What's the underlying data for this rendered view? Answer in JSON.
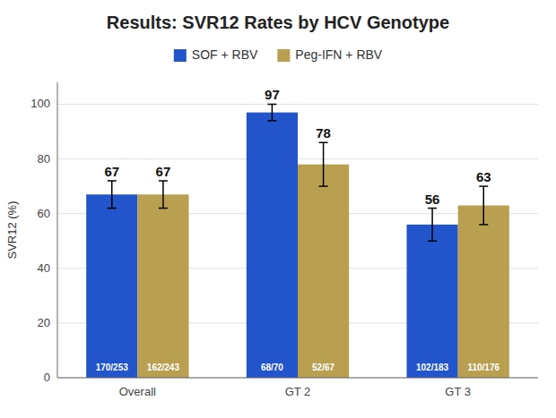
{
  "chart_data": {
    "type": "bar",
    "title": "Results: SVR12 Rates by HCV Genotype",
    "ylabel": "SVR12 (%)",
    "categories": [
      "Overall",
      "GT 2",
      "GT 3"
    ],
    "series": [
      {
        "name": "SOF + RBV",
        "color": "#2255CC",
        "values": [
          67,
          97,
          56
        ],
        "errors": [
          5,
          3,
          6
        ],
        "annotations": [
          "170/253",
          "68/70",
          "102/183"
        ]
      },
      {
        "name": "Peg-IFN + RBV",
        "color": "#B8A050",
        "values": [
          67,
          78,
          63
        ],
        "errors": [
          5,
          8,
          7
        ],
        "annotations": [
          "162/243",
          "52/67",
          "110/176"
        ]
      }
    ],
    "ylim": [
      0,
      108
    ],
    "yticks": [
      0,
      20,
      40,
      60,
      80,
      100
    ],
    "grid": true,
    "legend": "top",
    "data_labels": true
  }
}
